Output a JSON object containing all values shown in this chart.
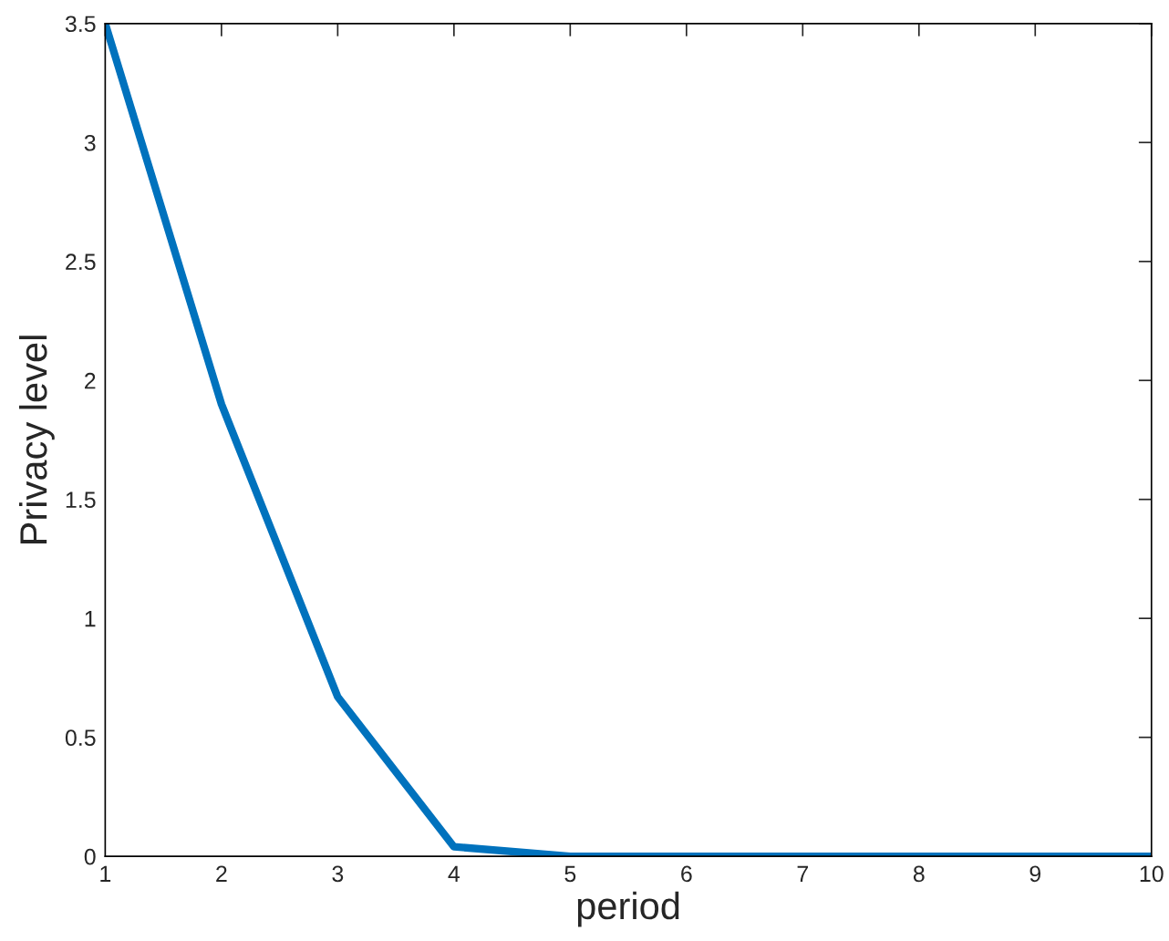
{
  "chart_data": {
    "type": "line",
    "xlabel": "period",
    "ylabel": "Privacy level",
    "x": [
      1,
      2,
      3,
      4,
      5,
      6,
      7,
      8,
      9,
      10
    ],
    "series": [
      {
        "color": "#0072bd",
        "values": [
          3.5,
          1.9,
          0.67,
          0.04,
          0,
          0,
          0,
          0,
          0,
          0
        ]
      }
    ],
    "xlim": [
      1,
      10
    ],
    "xticks": [
      1,
      2,
      3,
      4,
      5,
      6,
      7,
      8,
      9,
      10
    ],
    "ylim": [
      0,
      3.5
    ],
    "yticks": [
      0,
      0.5,
      1,
      1.5,
      2,
      2.5,
      3,
      3.5
    ],
    "grid": false,
    "legend": false,
    "marker": "none",
    "line_style": "solid"
  }
}
